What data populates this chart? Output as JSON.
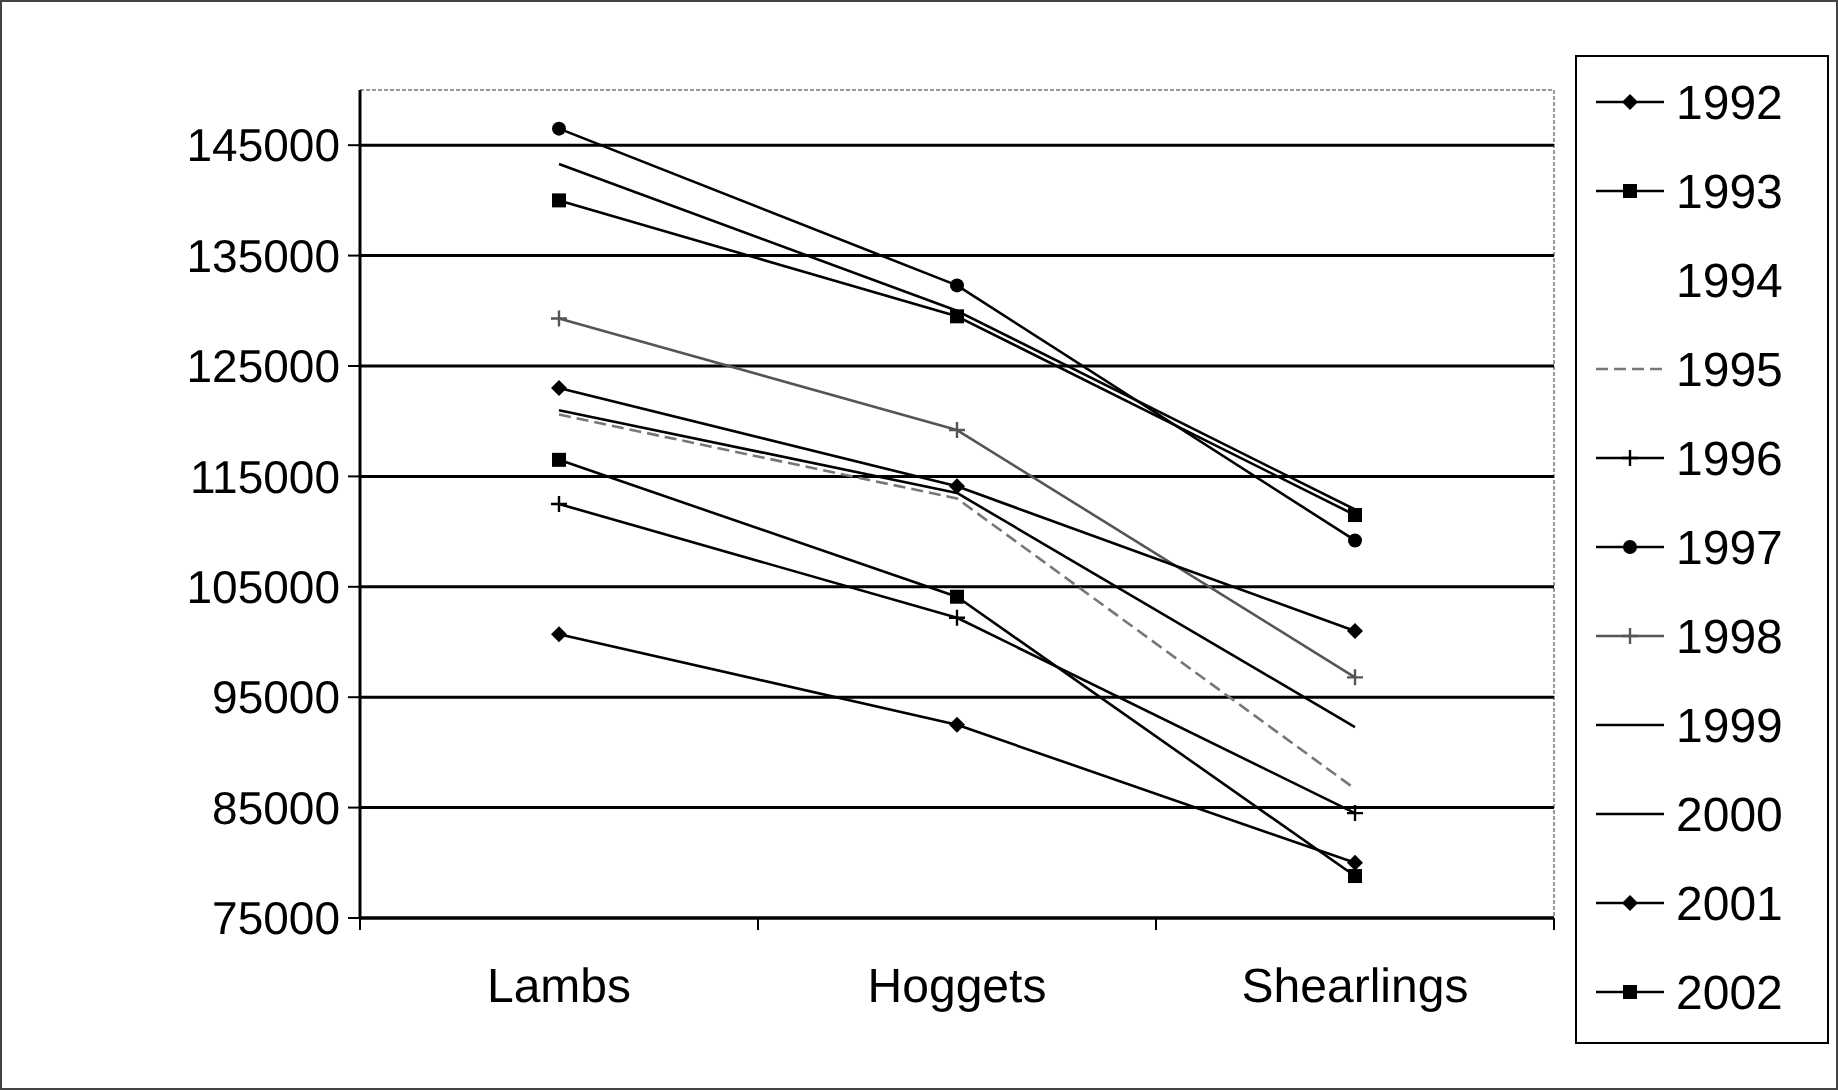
{
  "chart_data": {
    "type": "line",
    "categories": [
      "Lambs",
      "Hoggets",
      "Shearlings"
    ],
    "ylim": [
      75000,
      150000
    ],
    "yticks": [
      75000,
      85000,
      95000,
      105000,
      115000,
      125000,
      135000,
      145000
    ],
    "grid": "y",
    "legend": "right",
    "series": [
      {
        "name": "1992",
        "color": "#000000",
        "marker": "diamond",
        "values": [
          100700,
          92500,
          80000
        ]
      },
      {
        "name": "1993",
        "color": "#000000",
        "marker": "square",
        "values": [
          140000,
          129500,
          111500
        ]
      },
      {
        "name": "1994",
        "marker": "none",
        "values": [
          null,
          null,
          null
        ]
      },
      {
        "name": "1995",
        "color": "#777777",
        "marker": "none",
        "line_style": "dashed",
        "values": [
          120600,
          113000,
          86700
        ]
      },
      {
        "name": "1996",
        "color": "#000000",
        "marker": "cross",
        "values": [
          112500,
          102200,
          84500
        ]
      },
      {
        "name": "1997",
        "color": "#000000",
        "marker": "circle",
        "values": [
          146500,
          132300,
          109200
        ]
      },
      {
        "name": "1998",
        "color": "#555555",
        "marker": "cross",
        "values": [
          129300,
          119200,
          96800
        ]
      },
      {
        "name": "1999",
        "color": "#000000",
        "marker": "none",
        "values": [
          121000,
          113500,
          92300
        ]
      },
      {
        "name": "2000",
        "color": "#000000",
        "marker": "none",
        "values": [
          143300,
          130000,
          112000
        ]
      },
      {
        "name": "2001",
        "color": "#000000",
        "marker": "diamond",
        "values": [
          123000,
          114100,
          101000
        ]
      },
      {
        "name": "2002",
        "color": "#000000",
        "marker": "square",
        "values": [
          116500,
          104100,
          78800
        ]
      }
    ]
  }
}
